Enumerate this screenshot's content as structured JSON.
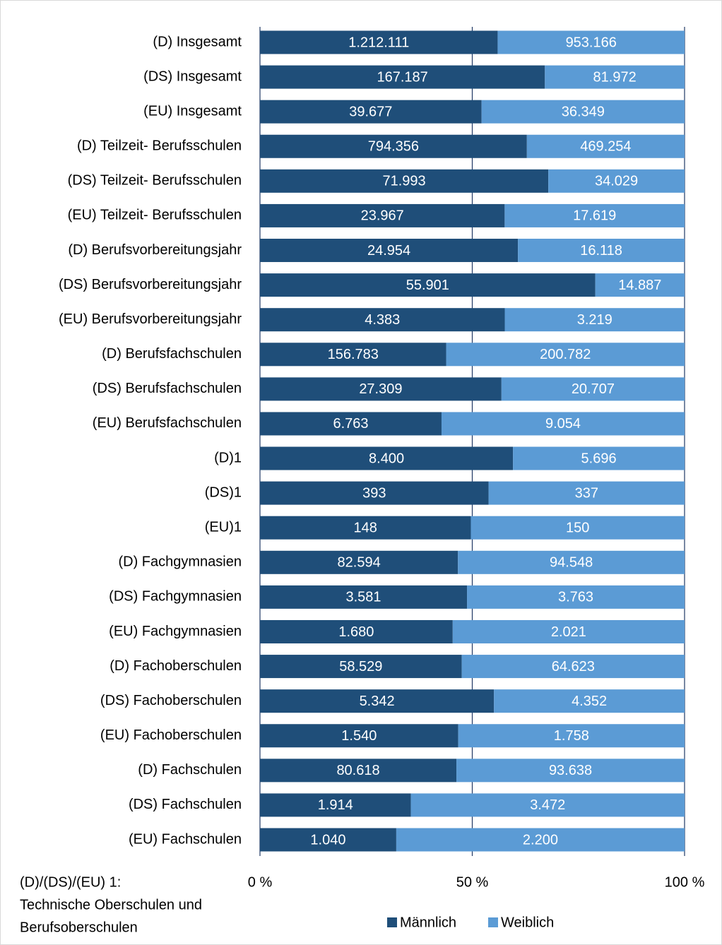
{
  "chart_data": {
    "type": "stacked-bar-100",
    "categories": [
      "(D) Insgesamt",
      "(DS) Insgesamt",
      "(EU) Insgesamt",
      "(D) Teilzeit- Berufsschulen",
      "(DS) Teilzeit- Berufsschulen",
      "(EU) Teilzeit- Berufsschulen",
      "(D) Berufsvorbereitungsjahr",
      "(DS) Berufsvorbereitungsjahr",
      "(EU) Berufsvorbereitungsjahr",
      "(D) Berufsfachschulen",
      "(DS) Berufsfachschulen",
      "(EU) Berufsfachschulen",
      "(D)1",
      "(DS)1",
      "(EU)1",
      "(D) Fachgymnasien",
      "(DS) Fachgymnasien",
      "(EU) Fachgymnasien",
      "(D) Fachoberschulen",
      "(DS) Fachoberschulen",
      "(EU) Fachoberschulen",
      "(D) Fachschulen",
      "(DS) Fachschulen",
      "(EU) Fachschulen"
    ],
    "series": [
      {
        "name": "Männlich",
        "color": "#1f4e79",
        "values": [
          1212111,
          167187,
          39677,
          794356,
          71993,
          23967,
          24954,
          55901,
          4383,
          156783,
          27309,
          6763,
          8400,
          393,
          148,
          82594,
          3581,
          1680,
          58529,
          5342,
          1540,
          80618,
          1914,
          1040
        ],
        "value_labels": [
          "1.212.111",
          "167.187",
          "39.677",
          "794.356",
          "71.993",
          "23.967",
          "24.954",
          "55.901",
          "4.383",
          "156.783",
          "27.309",
          "6.763",
          "8.400",
          "393",
          "148",
          "82.594",
          "3.581",
          "1.680",
          "58.529",
          "5.342",
          "1.540",
          "80.618",
          "1.914",
          "1.040"
        ]
      },
      {
        "name": "Weiblich",
        "color": "#5b9bd5",
        "values": [
          953166,
          81972,
          36349,
          469254,
          34029,
          17619,
          16118,
          14887,
          3219,
          200782,
          20707,
          9054,
          5696,
          337,
          150,
          94548,
          3763,
          2021,
          64623,
          4352,
          1758,
          93638,
          3472,
          2200
        ],
        "value_labels": [
          "953.166",
          "81.972",
          "36.349",
          "469.254",
          "34.029",
          "17.619",
          "16.118",
          "14.887",
          "3.219",
          "200.782",
          "20.707",
          "9.054",
          "5.696",
          "337",
          "150",
          "94.548",
          "3.763",
          "2.021",
          "64.623",
          "4.352",
          "1.758",
          "93.638",
          "3.472",
          "2.200"
        ]
      }
    ],
    "xlim": [
      0,
      100
    ],
    "xticks": [
      {
        "value": 0,
        "label": "0 %"
      },
      {
        "value": 50,
        "label": "50 %"
      },
      {
        "value": 100,
        "label": "100 %"
      }
    ],
    "grid": true,
    "legend": "bottom",
    "note": [
      "(D)/(DS)/(EU) 1:",
      "Technische Oberschulen und",
      "Berufsoberschulen"
    ]
  }
}
